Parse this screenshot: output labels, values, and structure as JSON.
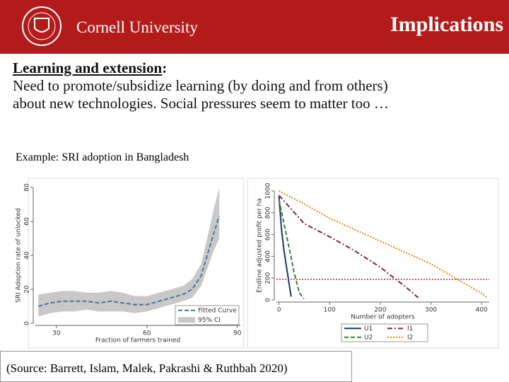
{
  "header": {
    "logo_text": "Cornell University",
    "title": "Implications"
  },
  "body": {
    "heading": "Learning and extension",
    "heading_punct": ":",
    "lines": [
      "Need to promote/subsidize learning (by doing and from others)",
      "about new technologies. Social pressures seem to matter too …"
    ],
    "example": "Example: SRI adoption in Bangladesh",
    "source": "(Source: Barrett, Islam, Malek, Pakrashi & Ruthbah 2020)"
  },
  "chart_data": [
    {
      "type": "line",
      "ylabel": "SRI Adoption rate of unlocked",
      "xlabel": "Fraction of farmers trained",
      "x": [
        24,
        28,
        32,
        36,
        40,
        44,
        48,
        52,
        56,
        60,
        64,
        68,
        72,
        75,
        78,
        80,
        82,
        84
      ],
      "xlim": [
        23,
        91
      ],
      "xticks": [
        30,
        60,
        90
      ],
      "ylim": [
        0,
        80
      ],
      "yticks": [
        0,
        20,
        40,
        60,
        80
      ],
      "band": {
        "name": "95% CI",
        "color": "#c8c8c8",
        "lower": [
          4,
          6,
          7,
          7,
          8,
          7,
          7,
          7,
          6,
          7,
          9,
          11,
          13,
          15,
          22,
          32,
          42,
          50
        ],
        "upper": [
          17,
          18,
          19,
          19,
          18,
          18,
          19,
          18,
          16,
          16,
          18,
          20,
          22,
          26,
          35,
          50,
          66,
          80
        ]
      },
      "series": [
        {
          "name": "Fitted Curve",
          "color": "#4f7199",
          "style": "dashed",
          "values": [
            10,
            12,
            13,
            13,
            13,
            12,
            13,
            12,
            11,
            11,
            13,
            15,
            17,
            20,
            28,
            40,
            52,
            63
          ]
        }
      ]
    },
    {
      "type": "line",
      "ylabel": "Endline adjusted profit per ha",
      "xlabel": "Number of adopters",
      "xlim": [
        -5,
        415
      ],
      "xticks": [
        0,
        100,
        200,
        300,
        400
      ],
      "ylim": [
        0,
        1000
      ],
      "yticks": [
        0,
        200,
        400,
        600,
        800,
        1000
      ],
      "hline": {
        "value": 190,
        "color": "#c0282a"
      },
      "series": [
        {
          "name": "U1",
          "color": "#1f3a5f",
          "style": "solid",
          "x": [
            0,
            5,
            10,
            15,
            20,
            24
          ],
          "values": [
            950,
            650,
            450,
            300,
            150,
            30
          ]
        },
        {
          "name": "I1",
          "color": "#7a2a3a",
          "style": "dashdot",
          "x": [
            0,
            50,
            100,
            150,
            200,
            250,
            275
          ],
          "values": [
            960,
            700,
            580,
            450,
            300,
            120,
            20
          ]
        },
        {
          "name": "U2",
          "color": "#3d7a3d",
          "style": "dashed",
          "x": [
            0,
            10,
            20,
            30,
            40,
            49
          ],
          "values": [
            920,
            700,
            480,
            250,
            70,
            10
          ]
        },
        {
          "name": "I2",
          "color": "#d98c1a",
          "style": "dotted",
          "x": [
            0,
            50,
            100,
            200,
            300,
            400,
            410
          ],
          "values": [
            1000,
            880,
            750,
            540,
            330,
            60,
            25
          ]
        }
      ]
    }
  ]
}
